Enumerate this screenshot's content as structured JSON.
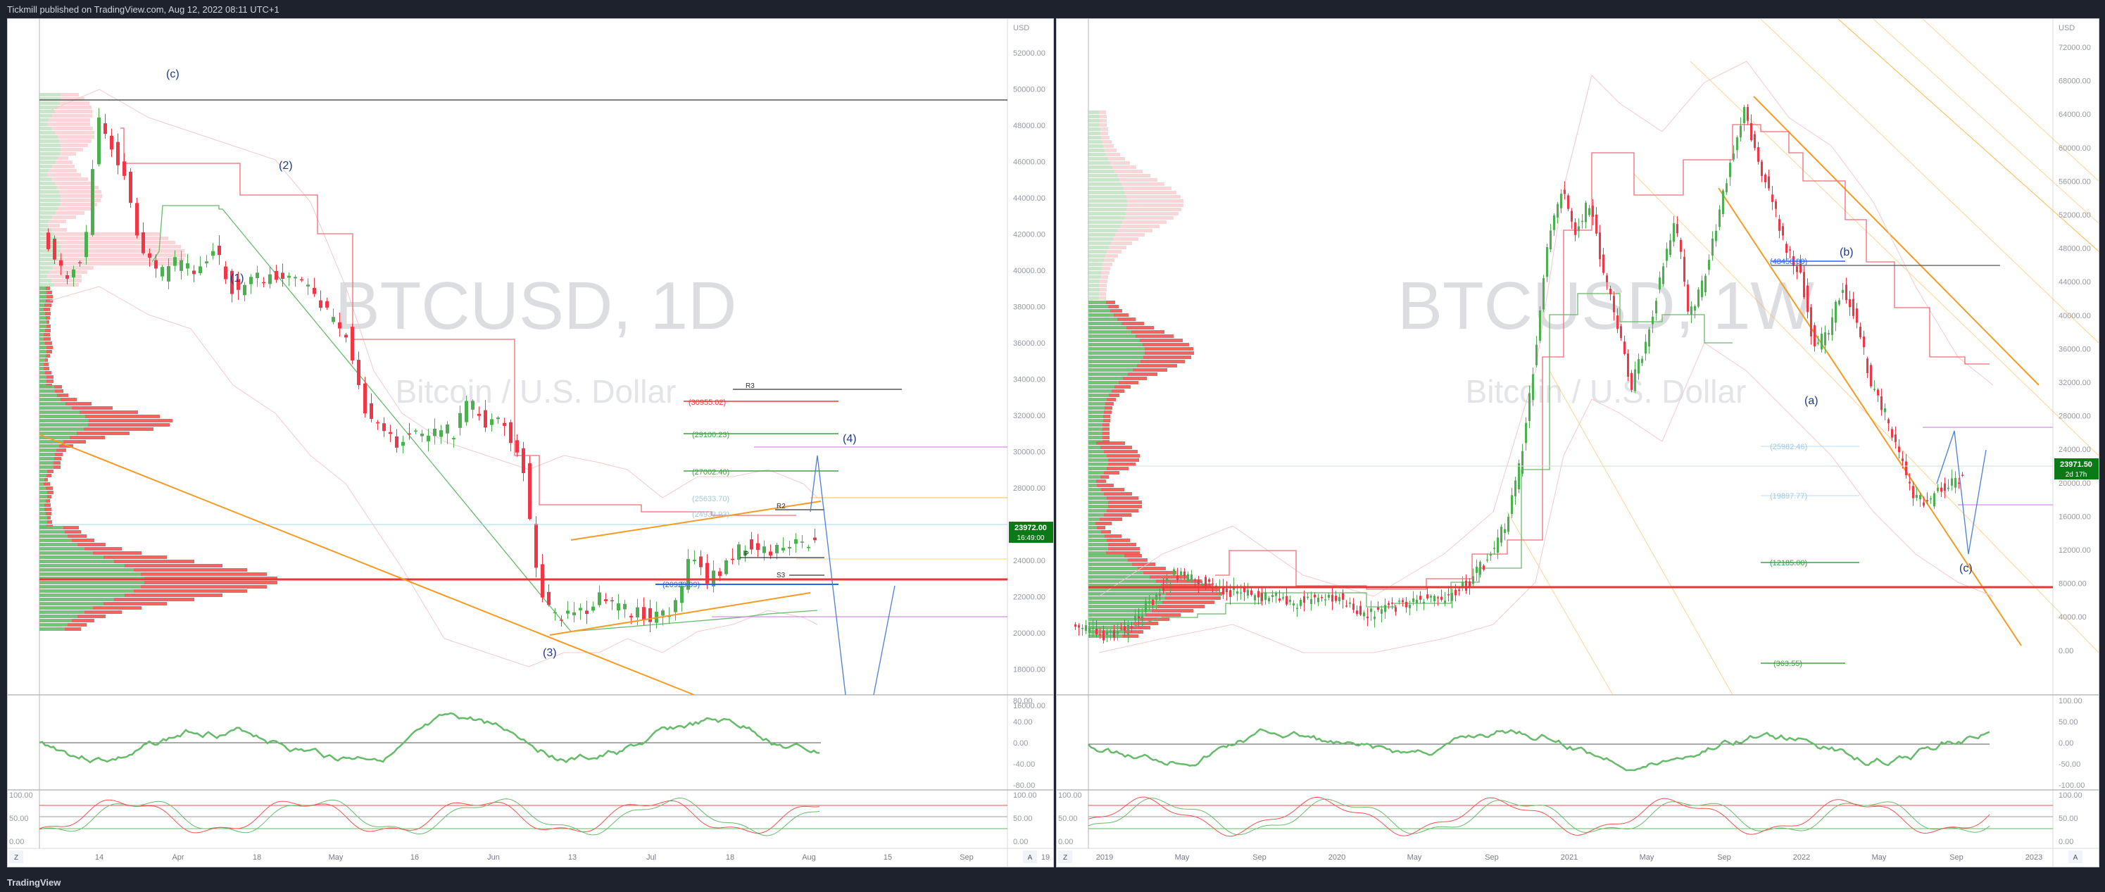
{
  "header": {
    "publisher_line": "Tickmill published on TradingView.com, Aug 12, 2022 08:11 UTC+1"
  },
  "footer": {
    "brand": "TradingView"
  },
  "colors": {
    "bull": "#4caf50",
    "bear": "#f23645",
    "fib": "#ff9800",
    "wave": "#1e3a8a",
    "proj": "#2962ff",
    "price_tag": "#0a7a17"
  },
  "left_panel": {
    "watermark_symbol": "BTCUSD, 1D",
    "watermark_name": "Bitcoin / U.S. Dollar",
    "currency": "USD",
    "price_ticks": [
      "52000.00",
      "50000.00",
      "48000.00",
      "46000.00",
      "44000.00",
      "42000.00",
      "40000.00",
      "38000.00",
      "36000.00",
      "34000.00",
      "32000.00",
      "30000.00",
      "28000.00",
      "26000.00",
      "24000.00",
      "22000.00",
      "20000.00",
      "18000.00",
      "16000.00"
    ],
    "last_price": "23972.00",
    "countdown": "16:49:00",
    "osc1_ticks": [
      "80.00",
      "40.00",
      "0.00",
      "-40.00",
      "-80.00"
    ],
    "osc2_ticks": [
      "100.00",
      "50.00",
      "0.00"
    ],
    "time_ticks": [
      "14",
      "Apr",
      "18",
      "May",
      "16",
      "Jun",
      "13",
      "Jul",
      "18",
      "Aug",
      "15",
      "Sep",
      "19"
    ],
    "wave_labels": [
      "(c)",
      "(2)",
      "(1)",
      "(3)",
      "(4)"
    ],
    "pivot_labels": [
      "R3",
      "R2",
      "P",
      "S3"
    ],
    "level_labels": [
      "(30955.02)",
      "(29100.23)",
      "(27002.40)",
      "(25633.70)",
      "(24933.93)",
      "(20929.99)"
    ],
    "axis_buttons": [
      "Z",
      "A"
    ]
  },
  "right_panel": {
    "watermark_symbol": "BTCUSD, 1W",
    "watermark_name": "Bitcoin / U.S. Dollar",
    "currency": "USD",
    "price_ticks": [
      "72000.00",
      "68000.00",
      "64000.00",
      "60000.00",
      "56000.00",
      "52000.00",
      "48000.00",
      "44000.00",
      "40000.00",
      "36000.00",
      "32000.00",
      "28000.00",
      "24000.00",
      "20000.00",
      "16000.00",
      "12000.00",
      "8000.00",
      "4000.00",
      "0.00"
    ],
    "last_price": "23971.50",
    "countdown": "2d 17h",
    "osc1_ticks": [
      "100.00",
      "50.00",
      "0.00",
      "-50.00",
      "-100.00"
    ],
    "osc2_ticks": [
      "100.00",
      "50.00",
      "0.00"
    ],
    "time_ticks": [
      "2019",
      "May",
      "Sep",
      "2020",
      "May",
      "Sep",
      "2021",
      "May",
      "Sep",
      "2022",
      "May",
      "Sep",
      "2023"
    ],
    "wave_labels": [
      "(b)",
      "(a)",
      "(c)"
    ],
    "level_labels": [
      "(48450.00)",
      "(25982.46)",
      "(19897.77)",
      "(12185.00)",
      "(363.55)"
    ],
    "axis_buttons": [
      "Z",
      "A"
    ]
  }
}
